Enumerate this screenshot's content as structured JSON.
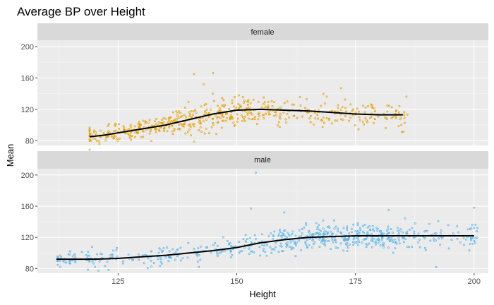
{
  "chart_data": {
    "type": "scatter",
    "title": "Average BP over Height",
    "xlabel": "Height",
    "ylabel": "Mean",
    "xlim": [
      108,
      203
    ],
    "ylim": [
      74,
      208
    ],
    "x_ticks": [
      125,
      150,
      175,
      200
    ],
    "y_ticks": [
      80,
      120,
      160,
      200
    ],
    "grid": true,
    "legend": "none",
    "panels": [
      {
        "label": "female",
        "point_color": "#E69F00",
        "x_range": [
          119,
          186
        ],
        "trend": [
          [
            119,
            85
          ],
          [
            122,
            87
          ],
          [
            125,
            90
          ],
          [
            130,
            95
          ],
          [
            135,
            100
          ],
          [
            140,
            107
          ],
          [
            145,
            114
          ],
          [
            150,
            119
          ],
          [
            155,
            120
          ],
          [
            160,
            119
          ],
          [
            165,
            118
          ],
          [
            170,
            116
          ],
          [
            175,
            114
          ],
          [
            180,
            113
          ],
          [
            185,
            113
          ]
        ],
        "highlights": [
          [
            141,
            165
          ],
          [
            145,
            166
          ],
          [
            143,
            152
          ],
          [
            172,
            147
          ],
          [
            141,
            79
          ],
          [
            120,
            93
          ],
          [
            132,
            80
          ]
        ]
      },
      {
        "label": "male",
        "point_color": "#56B4E9",
        "x_range": [
          112,
          201
        ],
        "trend": [
          [
            112,
            92
          ],
          [
            120,
            92
          ],
          [
            125,
            93
          ],
          [
            130,
            95
          ],
          [
            135,
            97
          ],
          [
            140,
            100
          ],
          [
            145,
            103
          ],
          [
            150,
            107
          ],
          [
            155,
            113
          ],
          [
            160,
            117
          ],
          [
            165,
            120
          ],
          [
            170,
            121
          ],
          [
            175,
            122
          ],
          [
            180,
            122
          ],
          [
            185,
            122
          ],
          [
            190,
            122
          ],
          [
            195,
            122
          ],
          [
            200,
            122
          ]
        ],
        "highlights": [
          [
            154,
            203
          ],
          [
            153,
            157
          ],
          [
            160,
            152
          ],
          [
            182,
            155
          ],
          [
            200,
            158
          ],
          [
            192,
            82
          ],
          [
            123,
            78
          ],
          [
            142,
            82
          ]
        ]
      }
    ]
  }
}
